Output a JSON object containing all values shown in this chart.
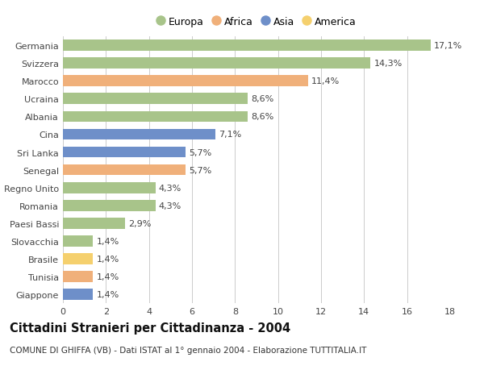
{
  "countries": [
    "Germania",
    "Svizzera",
    "Marocco",
    "Ucraina",
    "Albania",
    "Cina",
    "Sri Lanka",
    "Senegal",
    "Regno Unito",
    "Romania",
    "Paesi Bassi",
    "Slovacchia",
    "Brasile",
    "Tunisia",
    "Giappone"
  ],
  "values": [
    17.1,
    14.3,
    11.4,
    8.6,
    8.6,
    7.1,
    5.7,
    5.7,
    4.3,
    4.3,
    2.9,
    1.4,
    1.4,
    1.4,
    1.4
  ],
  "labels": [
    "17,1%",
    "14,3%",
    "11,4%",
    "8,6%",
    "8,6%",
    "7,1%",
    "5,7%",
    "5,7%",
    "4,3%",
    "4,3%",
    "2,9%",
    "1,4%",
    "1,4%",
    "1,4%",
    "1,4%"
  ],
  "continents": [
    "Europa",
    "Europa",
    "Africa",
    "Europa",
    "Europa",
    "Asia",
    "Asia",
    "Africa",
    "Europa",
    "Europa",
    "Europa",
    "Europa",
    "America",
    "Africa",
    "Asia"
  ],
  "continent_colors": {
    "Europa": "#a8c48a",
    "Africa": "#f0b07a",
    "Asia": "#6e8fc9",
    "America": "#f5d06e"
  },
  "legend_order": [
    "Europa",
    "Africa",
    "Asia",
    "America"
  ],
  "title": "Cittadini Stranieri per Cittadinanza - 2004",
  "subtitle": "COMUNE DI GHIFFA (VB) - Dati ISTAT al 1° gennaio 2004 - Elaborazione TUTTITALIA.IT",
  "xlim": [
    0,
    18
  ],
  "xticks": [
    0,
    2,
    4,
    6,
    8,
    10,
    12,
    14,
    16,
    18
  ],
  "bg_color": "#ffffff",
  "grid_color": "#cccccc",
  "bar_height": 0.62,
  "label_fontsize": 8,
  "title_fontsize": 10.5,
  "subtitle_fontsize": 7.5,
  "tick_fontsize": 8
}
